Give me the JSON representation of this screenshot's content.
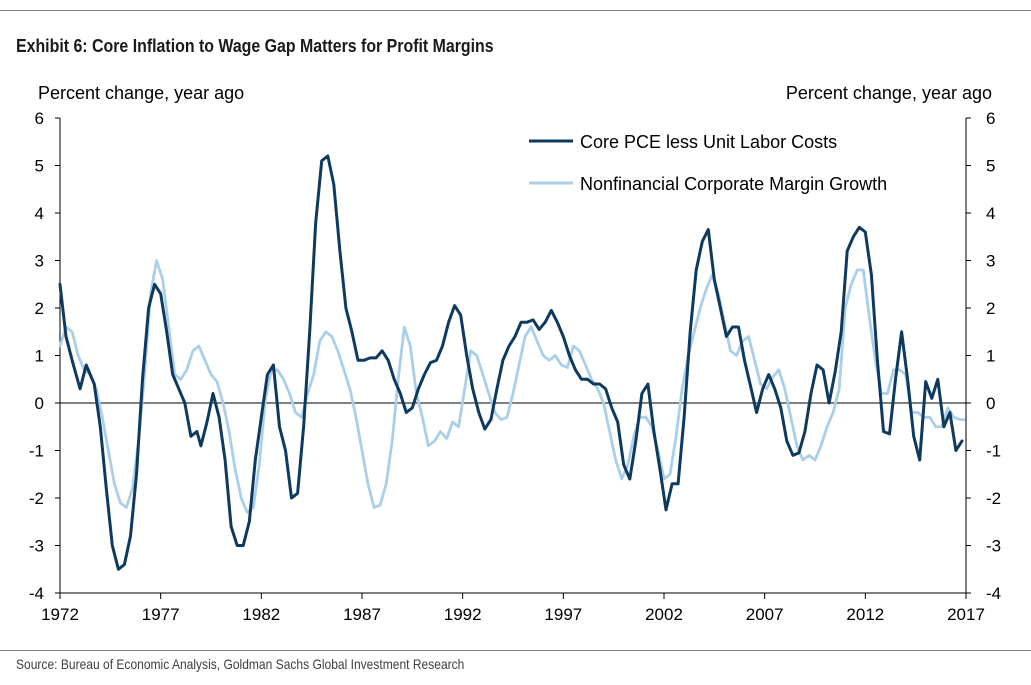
{
  "title": "Exhibit 6: Core Inflation to Wage Gap Matters for Profit Margins",
  "source": "Source: Bureau of Economic Analysis, Goldman Sachs Global Investment Research",
  "chart_data": {
    "type": "line",
    "ylabel_left": "Percent change, year ago",
    "ylabel_right": "Percent change, year ago",
    "ylim": [
      -4,
      6
    ],
    "xlim": [
      1972,
      2017
    ],
    "x_ticks": [
      "1972",
      "1977",
      "1982",
      "1987",
      "1992",
      "1997",
      "2002",
      "2007",
      "2012",
      "2017"
    ],
    "y_ticks": [
      "6",
      "5",
      "4",
      "3",
      "2",
      "1",
      "0",
      "-1",
      "-2",
      "-3",
      "-4"
    ],
    "grid": false,
    "legend_position": "top-right",
    "series": [
      {
        "name": "Core PCE less Unit Labor Costs",
        "color": "#0f3a5f",
        "points": [
          [
            1972.0,
            2.5
          ],
          [
            1972.3,
            1.4
          ],
          [
            1972.6,
            0.9
          ],
          [
            1973.0,
            0.3
          ],
          [
            1973.3,
            0.8
          ],
          [
            1973.7,
            0.4
          ],
          [
            1974.0,
            -0.5
          ],
          [
            1974.3,
            -1.8
          ],
          [
            1974.6,
            -3.0
          ],
          [
            1974.9,
            -3.5
          ],
          [
            1975.2,
            -3.4
          ],
          [
            1975.5,
            -2.8
          ],
          [
            1975.8,
            -1.5
          ],
          [
            1976.1,
            0.5
          ],
          [
            1976.4,
            2.0
          ],
          [
            1976.7,
            2.5
          ],
          [
            1977.0,
            2.3
          ],
          [
            1977.3,
            1.5
          ],
          [
            1977.6,
            0.6
          ],
          [
            1977.9,
            0.3
          ],
          [
            1978.2,
            0.0
          ],
          [
            1978.5,
            -0.7
          ],
          [
            1978.8,
            -0.6
          ],
          [
            1979.0,
            -0.9
          ],
          [
            1979.3,
            -0.4
          ],
          [
            1979.6,
            0.2
          ],
          [
            1979.9,
            -0.3
          ],
          [
            1980.2,
            -1.2
          ],
          [
            1980.5,
            -2.6
          ],
          [
            1980.8,
            -3.0
          ],
          [
            1981.1,
            -3.0
          ],
          [
            1981.4,
            -2.5
          ],
          [
            1981.7,
            -1.2
          ],
          [
            1982.0,
            -0.3
          ],
          [
            1982.3,
            0.6
          ],
          [
            1982.6,
            0.8
          ],
          [
            1982.9,
            -0.5
          ],
          [
            1983.2,
            -1.0
          ],
          [
            1983.5,
            -2.0
          ],
          [
            1983.8,
            -1.9
          ],
          [
            1984.1,
            -0.5
          ],
          [
            1984.4,
            1.5
          ],
          [
            1984.7,
            3.8
          ],
          [
            1985.0,
            5.1
          ],
          [
            1985.3,
            5.2
          ],
          [
            1985.6,
            4.6
          ],
          [
            1985.9,
            3.2
          ],
          [
            1986.2,
            2.0
          ],
          [
            1986.5,
            1.5
          ],
          [
            1986.8,
            0.9
          ],
          [
            1987.1,
            0.9
          ],
          [
            1987.4,
            0.95
          ],
          [
            1987.7,
            0.95
          ],
          [
            1988.0,
            1.1
          ],
          [
            1988.3,
            0.9
          ],
          [
            1988.6,
            0.5
          ],
          [
            1988.9,
            0.2
          ],
          [
            1989.2,
            -0.2
          ],
          [
            1989.5,
            -0.1
          ],
          [
            1989.8,
            0.3
          ],
          [
            1990.1,
            0.6
          ],
          [
            1990.4,
            0.85
          ],
          [
            1990.7,
            0.9
          ],
          [
            1991.0,
            1.2
          ],
          [
            1991.3,
            1.7
          ],
          [
            1991.6,
            2.05
          ],
          [
            1991.9,
            1.85
          ],
          [
            1992.2,
            1.0
          ],
          [
            1992.5,
            0.3
          ],
          [
            1992.8,
            -0.2
          ],
          [
            1993.1,
            -0.55
          ],
          [
            1993.4,
            -0.35
          ],
          [
            1993.7,
            0.3
          ],
          [
            1994.0,
            0.9
          ],
          [
            1994.3,
            1.2
          ],
          [
            1994.6,
            1.4
          ],
          [
            1994.9,
            1.7
          ],
          [
            1995.2,
            1.7
          ],
          [
            1995.5,
            1.75
          ],
          [
            1995.8,
            1.55
          ],
          [
            1996.1,
            1.7
          ],
          [
            1996.4,
            1.95
          ],
          [
            1996.7,
            1.7
          ],
          [
            1997.0,
            1.4
          ],
          [
            1997.3,
            1.0
          ],
          [
            1997.6,
            0.7
          ],
          [
            1997.9,
            0.5
          ],
          [
            1998.2,
            0.5
          ],
          [
            1998.5,
            0.4
          ],
          [
            1998.8,
            0.4
          ],
          [
            1999.1,
            0.3
          ],
          [
            1999.4,
            -0.1
          ],
          [
            1999.7,
            -0.4
          ],
          [
            2000.0,
            -1.3
          ],
          [
            2000.3,
            -1.6
          ],
          [
            2000.6,
            -0.8
          ],
          [
            2000.9,
            0.2
          ],
          [
            2001.2,
            0.4
          ],
          [
            2001.5,
            -0.6
          ],
          [
            2001.8,
            -1.4
          ],
          [
            2002.1,
            -2.25
          ],
          [
            2002.4,
            -1.7
          ],
          [
            2002.7,
            -1.7
          ],
          [
            2003.0,
            -0.3
          ],
          [
            2003.3,
            1.5
          ],
          [
            2003.6,
            2.8
          ],
          [
            2003.9,
            3.4
          ],
          [
            2004.2,
            3.65
          ],
          [
            2004.5,
            2.6
          ],
          [
            2004.8,
            2.0
          ],
          [
            2005.1,
            1.4
          ],
          [
            2005.4,
            1.6
          ],
          [
            2005.7,
            1.6
          ],
          [
            2006.0,
            0.9
          ],
          [
            2006.3,
            0.35
          ],
          [
            2006.6,
            -0.2
          ],
          [
            2006.9,
            0.3
          ],
          [
            2007.2,
            0.6
          ],
          [
            2007.5,
            0.3
          ],
          [
            2007.8,
            -0.1
          ],
          [
            2008.1,
            -0.8
          ],
          [
            2008.4,
            -1.1
          ],
          [
            2008.7,
            -1.05
          ],
          [
            2009.0,
            -0.6
          ],
          [
            2009.3,
            0.2
          ],
          [
            2009.6,
            0.8
          ],
          [
            2009.9,
            0.7
          ],
          [
            2010.2,
            0.0
          ],
          [
            2010.5,
            0.65
          ],
          [
            2010.8,
            1.5
          ],
          [
            2011.1,
            3.2
          ],
          [
            2011.4,
            3.5
          ],
          [
            2011.7,
            3.7
          ],
          [
            2012.0,
            3.6
          ],
          [
            2012.3,
            2.7
          ],
          [
            2012.6,
            0.9
          ],
          [
            2012.9,
            -0.6
          ],
          [
            2013.2,
            -0.65
          ],
          [
            2013.5,
            0.5
          ],
          [
            2013.8,
            1.5
          ],
          [
            2014.1,
            0.5
          ],
          [
            2014.4,
            -0.7
          ],
          [
            2014.7,
            -1.2
          ],
          [
            2015.0,
            0.45
          ],
          [
            2015.3,
            0.1
          ],
          [
            2015.6,
            0.5
          ],
          [
            2015.9,
            -0.5
          ],
          [
            2016.2,
            -0.2
          ],
          [
            2016.5,
            -1.0
          ],
          [
            2016.8,
            -0.8
          ]
        ]
      },
      {
        "name": "Nonfinancial Corporate Margin Growth",
        "color": "#a9cfea",
        "points": [
          [
            1972.0,
            1.2
          ],
          [
            1972.3,
            1.6
          ],
          [
            1972.6,
            1.5
          ],
          [
            1972.9,
            1.0
          ],
          [
            1973.2,
            0.7
          ],
          [
            1973.5,
            0.6
          ],
          [
            1973.8,
            0.3
          ],
          [
            1974.1,
            -0.3
          ],
          [
            1974.4,
            -1.0
          ],
          [
            1974.7,
            -1.7
          ],
          [
            1975.0,
            -2.1
          ],
          [
            1975.3,
            -2.2
          ],
          [
            1975.6,
            -1.8
          ],
          [
            1975.9,
            -0.8
          ],
          [
            1976.2,
            0.6
          ],
          [
            1976.5,
            2.3
          ],
          [
            1976.8,
            3.0
          ],
          [
            1977.1,
            2.6
          ],
          [
            1977.4,
            1.6
          ],
          [
            1977.7,
            0.6
          ],
          [
            1978.0,
            0.5
          ],
          [
            1978.3,
            0.7
          ],
          [
            1978.6,
            1.1
          ],
          [
            1978.9,
            1.2
          ],
          [
            1979.2,
            0.9
          ],
          [
            1979.5,
            0.6
          ],
          [
            1979.8,
            0.45
          ],
          [
            1980.1,
            0.0
          ],
          [
            1980.4,
            -0.6
          ],
          [
            1980.7,
            -1.4
          ],
          [
            1981.0,
            -2.0
          ],
          [
            1981.3,
            -2.3
          ],
          [
            1981.6,
            -2.2
          ],
          [
            1981.9,
            -1.3
          ],
          [
            1982.2,
            0.1
          ],
          [
            1982.5,
            0.7
          ],
          [
            1982.8,
            0.7
          ],
          [
            1983.1,
            0.5
          ],
          [
            1983.4,
            0.2
          ],
          [
            1983.7,
            -0.2
          ],
          [
            1984.0,
            -0.3
          ],
          [
            1984.3,
            0.2
          ],
          [
            1984.6,
            0.6
          ],
          [
            1984.9,
            1.3
          ],
          [
            1985.2,
            1.5
          ],
          [
            1985.5,
            1.4
          ],
          [
            1985.8,
            1.1
          ],
          [
            1986.1,
            0.7
          ],
          [
            1986.4,
            0.3
          ],
          [
            1986.7,
            -0.3
          ],
          [
            1987.0,
            -1.0
          ],
          [
            1987.3,
            -1.7
          ],
          [
            1987.6,
            -2.2
          ],
          [
            1987.9,
            -2.15
          ],
          [
            1988.2,
            -1.7
          ],
          [
            1988.5,
            -0.8
          ],
          [
            1988.8,
            0.5
          ],
          [
            1989.1,
            1.6
          ],
          [
            1989.4,
            1.2
          ],
          [
            1989.7,
            0.2
          ],
          [
            1990.0,
            -0.3
          ],
          [
            1990.3,
            -0.9
          ],
          [
            1990.6,
            -0.8
          ],
          [
            1990.9,
            -0.6
          ],
          [
            1991.2,
            -0.75
          ],
          [
            1991.5,
            -0.4
          ],
          [
            1991.8,
            -0.5
          ],
          [
            1992.1,
            0.3
          ],
          [
            1992.4,
            1.1
          ],
          [
            1992.7,
            1.0
          ],
          [
            1993.0,
            0.6
          ],
          [
            1993.3,
            0.2
          ],
          [
            1993.6,
            -0.2
          ],
          [
            1993.9,
            -0.35
          ],
          [
            1994.2,
            -0.3
          ],
          [
            1994.5,
            0.2
          ],
          [
            1994.8,
            0.8
          ],
          [
            1995.1,
            1.4
          ],
          [
            1995.4,
            1.6
          ],
          [
            1995.7,
            1.3
          ],
          [
            1996.0,
            1.0
          ],
          [
            1996.3,
            0.9
          ],
          [
            1996.6,
            1.0
          ],
          [
            1996.9,
            0.8
          ],
          [
            1997.2,
            0.75
          ],
          [
            1997.5,
            1.2
          ],
          [
            1997.8,
            1.1
          ],
          [
            1998.1,
            0.8
          ],
          [
            1998.4,
            0.5
          ],
          [
            1998.7,
            0.3
          ],
          [
            1999.0,
            0.0
          ],
          [
            1999.3,
            -0.6
          ],
          [
            1999.6,
            -1.2
          ],
          [
            1999.9,
            -1.6
          ],
          [
            2000.2,
            -1.3
          ],
          [
            2000.5,
            -0.7
          ],
          [
            2000.8,
            -0.3
          ],
          [
            2001.1,
            -0.3
          ],
          [
            2001.4,
            -0.5
          ],
          [
            2001.7,
            -1.0
          ],
          [
            2002.0,
            -1.6
          ],
          [
            2002.3,
            -1.5
          ],
          [
            2002.6,
            -0.7
          ],
          [
            2002.9,
            0.3
          ],
          [
            2003.2,
            1.0
          ],
          [
            2003.5,
            1.5
          ],
          [
            2003.8,
            2.0
          ],
          [
            2004.1,
            2.4
          ],
          [
            2004.4,
            2.7
          ],
          [
            2004.7,
            2.3
          ],
          [
            2005.0,
            1.7
          ],
          [
            2005.3,
            1.1
          ],
          [
            2005.6,
            1.0
          ],
          [
            2005.9,
            1.3
          ],
          [
            2006.2,
            1.4
          ],
          [
            2006.5,
            0.9
          ],
          [
            2006.8,
            0.4
          ],
          [
            2007.1,
            0.3
          ],
          [
            2007.4,
            0.55
          ],
          [
            2007.7,
            0.7
          ],
          [
            2008.0,
            0.3
          ],
          [
            2008.3,
            -0.3
          ],
          [
            2008.6,
            -0.9
          ],
          [
            2008.9,
            -1.2
          ],
          [
            2009.2,
            -1.1
          ],
          [
            2009.5,
            -1.2
          ],
          [
            2009.8,
            -0.9
          ],
          [
            2010.1,
            -0.5
          ],
          [
            2010.4,
            -0.2
          ],
          [
            2010.7,
            0.3
          ],
          [
            2011.0,
            2.0
          ],
          [
            2011.3,
            2.5
          ],
          [
            2011.6,
            2.8
          ],
          [
            2011.9,
            2.8
          ],
          [
            2012.2,
            1.8
          ],
          [
            2012.5,
            0.9
          ],
          [
            2012.8,
            0.2
          ],
          [
            2013.1,
            0.2
          ],
          [
            2013.4,
            0.7
          ],
          [
            2013.7,
            0.7
          ],
          [
            2014.0,
            0.6
          ],
          [
            2014.3,
            -0.2
          ],
          [
            2014.6,
            -0.2
          ],
          [
            2014.9,
            -0.3
          ],
          [
            2015.2,
            -0.3
          ],
          [
            2015.5,
            -0.5
          ],
          [
            2015.8,
            -0.5
          ],
          [
            2016.1,
            -0.1
          ],
          [
            2016.4,
            -0.3
          ],
          [
            2016.7,
            -0.35
          ],
          [
            2016.9,
            -0.35
          ]
        ]
      }
    ]
  }
}
